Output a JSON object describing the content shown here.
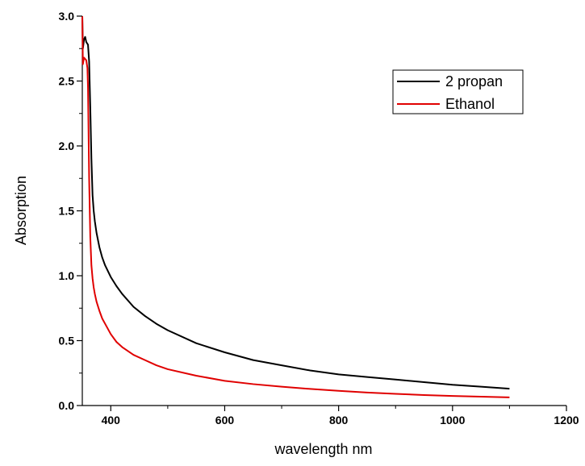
{
  "chart_data": {
    "type": "line",
    "title": "",
    "xlabel": "wavelength nm",
    "ylabel": "Absorption",
    "xlim": [
      350,
      1200
    ],
    "ylim": [
      0,
      3.0
    ],
    "x_ticks": [
      400,
      600,
      800,
      1000,
      1200
    ],
    "y_ticks": [
      0.0,
      0.5,
      1.0,
      1.5,
      2.0,
      2.5,
      3.0
    ],
    "x_tick_labels": [
      "400",
      "600",
      "800",
      "1000",
      "1200"
    ],
    "y_tick_labels": [
      "0.0",
      "0.5",
      "1.0",
      "1.5",
      "2.0",
      "2.5",
      "3.0"
    ],
    "grid": false,
    "legend_position": "top-right",
    "series": [
      {
        "name": "2 propan",
        "color": "#000000",
        "x": [
          350,
          351,
          353,
          355,
          357,
          360,
          362,
          364,
          366,
          368,
          370,
          372,
          375,
          380,
          385,
          390,
          400,
          410,
          420,
          440,
          460,
          480,
          500,
          550,
          600,
          650,
          700,
          750,
          800,
          850,
          900,
          950,
          1000,
          1050,
          1100
        ],
        "y": [
          3.0,
          2.75,
          2.82,
          2.84,
          2.8,
          2.78,
          2.65,
          2.3,
          1.9,
          1.62,
          1.5,
          1.42,
          1.33,
          1.22,
          1.14,
          1.08,
          0.99,
          0.92,
          0.86,
          0.76,
          0.69,
          0.63,
          0.58,
          0.48,
          0.41,
          0.35,
          0.31,
          0.27,
          0.24,
          0.22,
          0.2,
          0.18,
          0.16,
          0.145,
          0.13
        ]
      },
      {
        "name": "Ethanol",
        "color": "#e00000",
        "x": [
          350,
          351,
          353,
          355,
          357,
          359,
          360,
          361,
          362,
          364,
          366,
          368,
          370,
          372,
          375,
          380,
          385,
          390,
          400,
          410,
          420,
          440,
          460,
          480,
          500,
          550,
          600,
          650,
          700,
          750,
          800,
          850,
          900,
          950,
          1000,
          1050,
          1100
        ],
        "y": [
          3.0,
          2.63,
          2.68,
          2.67,
          2.66,
          2.6,
          2.45,
          2.1,
          1.75,
          1.3,
          1.08,
          0.98,
          0.91,
          0.86,
          0.8,
          0.73,
          0.67,
          0.63,
          0.55,
          0.49,
          0.45,
          0.39,
          0.35,
          0.31,
          0.28,
          0.23,
          0.19,
          0.165,
          0.145,
          0.128,
          0.113,
          0.1,
          0.09,
          0.081,
          0.074,
          0.068,
          0.063
        ]
      }
    ]
  }
}
